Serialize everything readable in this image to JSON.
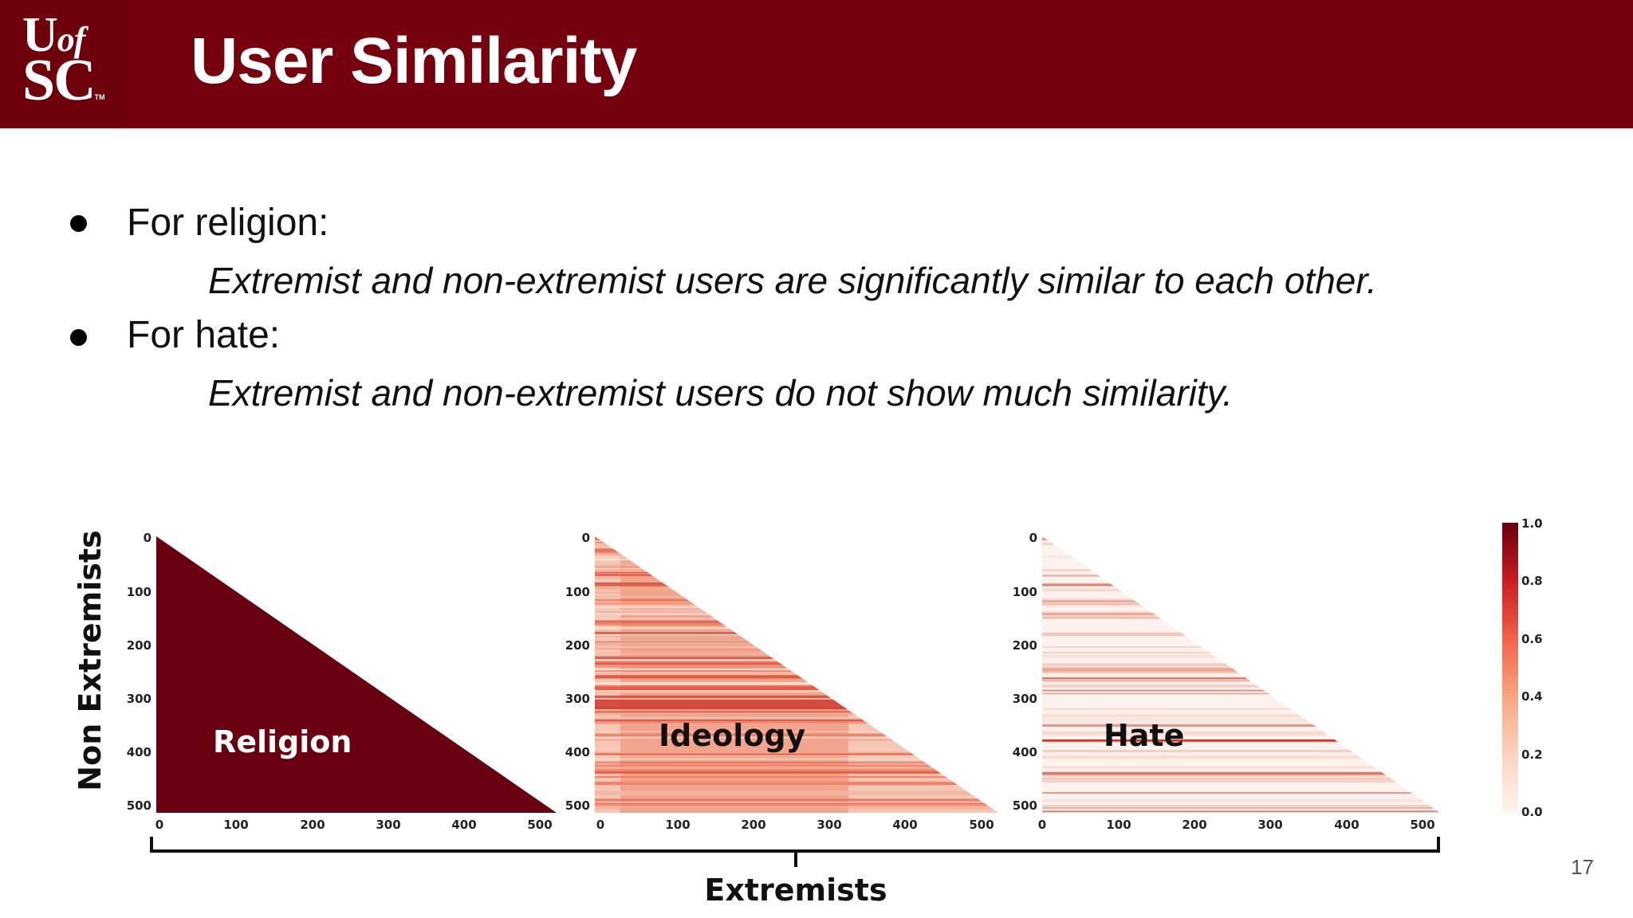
{
  "header": {
    "title": "User Similarity",
    "logo": {
      "line1_main": "U",
      "line1_small": "of",
      "line2": "SC",
      "tm": "TM"
    }
  },
  "bullets": [
    {
      "label": "For religion:",
      "detail": "Extremist and non-extremist users are significantly similar to each other."
    },
    {
      "label": "For hate:",
      "detail": "Extremist and non-extremist users do not show much similarity."
    }
  ],
  "figure": {
    "ylabel": "Non Extremists",
    "xlabel": "Extremists",
    "ticks": [
      "0",
      "100",
      "200",
      "300",
      "400",
      "500"
    ],
    "panels": [
      {
        "label": "Religion",
        "level": 1.0
      },
      {
        "label": "Ideology",
        "level": 0.4
      },
      {
        "label": "Hate",
        "level": 0.1
      }
    ],
    "colorbar": {
      "ticks": [
        "0.0",
        "0.2",
        "0.4",
        "0.6",
        "0.8",
        "1.0"
      ],
      "min": 0.0,
      "max": 1.0
    }
  },
  "page_number": "17"
}
